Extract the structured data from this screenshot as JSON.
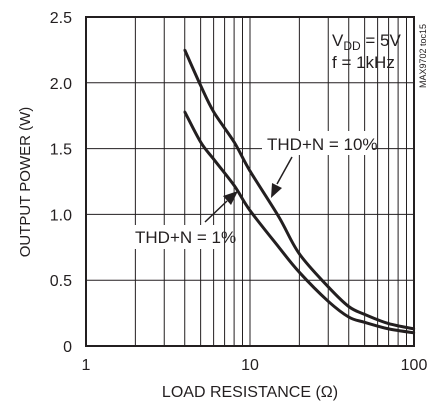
{
  "chart_data": {
    "type": "line",
    "xscale": "log",
    "xlim": [
      1,
      100
    ],
    "ylim": [
      0,
      2.5
    ],
    "xlabel": "LOAD RESISTANCE (Ω)",
    "ylabel": "OUTPUT POWER (W)",
    "xticks": [
      1,
      10,
      100
    ],
    "xtick_labels": [
      "1",
      "10",
      "100"
    ],
    "yticks": [
      0,
      0.5,
      1.0,
      1.5,
      2.0,
      2.5
    ],
    "ytick_labels": [
      "0",
      "0.5",
      "1.0",
      "1.5",
      "2.0",
      "2.5"
    ],
    "grid": true,
    "conditions": {
      "vdd_prefix": "V",
      "vdd_subscript": "DD",
      "vdd_value": " = 5V",
      "freq": "f = 1kHz"
    },
    "figure_id": "MAX9702 toc15",
    "series": [
      {
        "name": "THD+N = 10%",
        "x": [
          4,
          5,
          6,
          8,
          10,
          15,
          20,
          30,
          40,
          50,
          70,
          100
        ],
        "y": [
          2.25,
          1.98,
          1.78,
          1.55,
          1.33,
          0.98,
          0.7,
          0.45,
          0.3,
          0.24,
          0.17,
          0.13
        ]
      },
      {
        "name": "THD+N = 1%",
        "x": [
          4,
          5,
          6,
          8,
          10,
          15,
          20,
          30,
          40,
          50,
          70,
          100
        ],
        "y": [
          1.78,
          1.55,
          1.42,
          1.22,
          1.03,
          0.75,
          0.56,
          0.34,
          0.22,
          0.18,
          0.13,
          0.1
        ]
      }
    ],
    "annotations": [
      {
        "text": "THD+N = 10%",
        "series": 0,
        "arrow_to_x": 14,
        "arrow_to_y": 1.12
      },
      {
        "text": "THD+N = 1%",
        "series": 1,
        "arrow_to_x": 9.5,
        "arrow_to_y": 1.2
      }
    ]
  }
}
